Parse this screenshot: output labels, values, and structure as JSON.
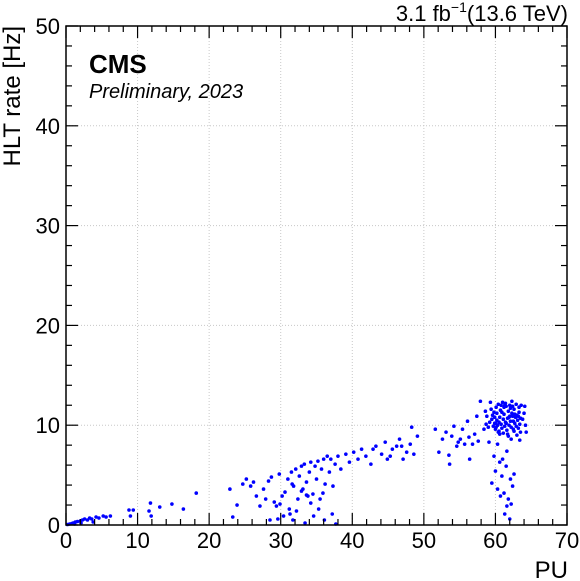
{
  "chart_data": {
    "type": "scatter",
    "title": "",
    "xlabel": "PU",
    "ylabel": "HLT rate [Hz]",
    "xlim": [
      0,
      70
    ],
    "ylim": [
      0,
      50
    ],
    "x_ticks": [
      "0",
      "10",
      "20",
      "30",
      "40",
      "50",
      "60",
      "70"
    ],
    "y_ticks": [
      "0",
      "10",
      "20",
      "30",
      "40",
      "50"
    ],
    "grid": true,
    "marker_color": "#0000ff",
    "lumi_value": "3.1 fb",
    "lumi_exponent": "−1",
    "lumi_energy": "(13.6 TeV)",
    "experiment": "CMS",
    "extra_text": "Preliminary, 2023",
    "points": [
      [
        0.2,
        0.05
      ],
      [
        0.5,
        0.1
      ],
      [
        0.8,
        0.15
      ],
      [
        1.0,
        0.2
      ],
      [
        1.3,
        0.3
      ],
      [
        1.6,
        0.35
      ],
      [
        2.0,
        0.4
      ],
      [
        2.3,
        0.5
      ],
      [
        2.6,
        0.6
      ],
      [
        3.0,
        0.5
      ],
      [
        3.3,
        0.7
      ],
      [
        3.6,
        0.6
      ],
      [
        4.2,
        0.8
      ],
      [
        4.6,
        0.7
      ],
      [
        5.2,
        0.9
      ],
      [
        5.6,
        0.8
      ],
      [
        6.2,
        0.9
      ],
      [
        1.2,
        0.1
      ],
      [
        2.1,
        0.2
      ],
      [
        3.8,
        0.3
      ],
      [
        8.8,
        1.5
      ],
      [
        9.4,
        1.5
      ],
      [
        9.0,
        0.9
      ],
      [
        11.6,
        1.4
      ],
      [
        11.8,
        2.2
      ],
      [
        11.9,
        0.9
      ],
      [
        13.1,
        1.8
      ],
      [
        14.8,
        2.1
      ],
      [
        16.4,
        1.6
      ],
      [
        18.2,
        3.2
      ],
      [
        22.9,
        3.6
      ],
      [
        23.3,
        0.8
      ],
      [
        23.9,
        2.0
      ],
      [
        24.7,
        4.1
      ],
      [
        25.2,
        4.6
      ],
      [
        25.8,
        3.9
      ],
      [
        26.2,
        4.3
      ],
      [
        26.6,
        2.9
      ],
      [
        27.1,
        1.9
      ],
      [
        27.6,
        3.6
      ],
      [
        27.9,
        2.6
      ],
      [
        28.3,
        4.4
      ],
      [
        28.7,
        4.8
      ],
      [
        29.1,
        2.3
      ],
      [
        29.4,
        1.9
      ],
      [
        29.8,
        5.1
      ],
      [
        30.2,
        2.9
      ],
      [
        30.6,
        3.3
      ],
      [
        31.0,
        4.6
      ],
      [
        31.2,
        1.6
      ],
      [
        31.5,
        5.3
      ],
      [
        31.8,
        3.9
      ],
      [
        32.1,
        5.6
      ],
      [
        32.4,
        2.6
      ],
      [
        32.6,
        4.9
      ],
      [
        32.9,
        5.9
      ],
      [
        33.1,
        3.6
      ],
      [
        33.3,
        6.1
      ],
      [
        33.6,
        4.3
      ],
      [
        33.8,
        2.9
      ],
      [
        34.0,
        5.3
      ],
      [
        34.2,
        6.3
      ],
      [
        34.5,
        3.1
      ],
      [
        34.8,
        5.9
      ],
      [
        35.0,
        4.6
      ],
      [
        35.2,
        6.4
      ],
      [
        35.5,
        2.6
      ],
      [
        35.7,
        5.6
      ],
      [
        36.0,
        6.6
      ],
      [
        36.2,
        4.1
      ],
      [
        36.5,
        6.9
      ],
      [
        36.8,
        5.3
      ],
      [
        37.0,
        6.6
      ],
      [
        37.3,
        3.9
      ],
      [
        37.6,
        6.1
      ],
      [
        38.0,
        6.9
      ],
      [
        38.4,
        5.6
      ],
      [
        39.1,
        7.1
      ],
      [
        39.6,
        6.3
      ],
      [
        40.2,
        7.3
      ],
      [
        40.8,
        6.6
      ],
      [
        41.3,
        7.6
      ],
      [
        29.6,
        0.6
      ],
      [
        30.4,
        0.9
      ],
      [
        31.3,
        1.1
      ],
      [
        31.7,
        0.5
      ],
      [
        32.2,
        1.4
      ],
      [
        33.4,
        0.2
      ],
      [
        34.6,
        0.9
      ],
      [
        35.3,
        1.6
      ],
      [
        36.1,
        0.5
      ],
      [
        37.2,
        1.1
      ],
      [
        37.7,
        0.1
      ],
      [
        28.5,
        0.5
      ],
      [
        33.6,
        3.0
      ],
      [
        34.2,
        2.2
      ],
      [
        29.9,
        2.1
      ],
      [
        31.6,
        4.1
      ],
      [
        32.9,
        3.4
      ],
      [
        35.9,
        3.2
      ],
      [
        42.6,
        6.1
      ],
      [
        43.3,
        7.9
      ],
      [
        44.1,
        7.1
      ],
      [
        44.6,
        8.3
      ],
      [
        45.3,
        6.9
      ],
      [
        45.6,
        7.6
      ],
      [
        46.2,
        7.9
      ],
      [
        46.6,
        8.6
      ],
      [
        47.1,
        6.6
      ],
      [
        47.6,
        7.3
      ],
      [
        48.1,
        8.1
      ],
      [
        48.3,
        9.8
      ],
      [
        48.6,
        7.1
      ],
      [
        49.1,
        8.9
      ],
      [
        42.9,
        7.6
      ],
      [
        44.9,
        6.6
      ],
      [
        46.9,
        7.9
      ],
      [
        41.9,
        6.9
      ],
      [
        51.6,
        9.6
      ],
      [
        52.1,
        7.3
      ],
      [
        52.6,
        8.6
      ],
      [
        53.1,
        9.3
      ],
      [
        53.6,
        6.1
      ],
      [
        53.9,
        8.9
      ],
      [
        54.2,
        9.9
      ],
      [
        54.6,
        7.9
      ],
      [
        55.1,
        8.6
      ],
      [
        55.4,
        9.6
      ],
      [
        55.7,
        8.1
      ],
      [
        56.1,
        10.4
      ],
      [
        56.4,
        6.6
      ],
      [
        56.8,
        8.1
      ],
      [
        57.1,
        9.1
      ],
      [
        57.4,
        10.9
      ],
      [
        57.6,
        8.4
      ],
      [
        53.5,
        7.0
      ],
      [
        54.8,
        8.3
      ],
      [
        56.3,
        8.8
      ],
      [
        59.5,
        10.6
      ],
      [
        59.7,
        9.9
      ],
      [
        59.8,
        11.3
      ],
      [
        59.9,
        10.2
      ],
      [
        60.0,
        9.6
      ],
      [
        60.1,
        11.8
      ],
      [
        60.2,
        10.5
      ],
      [
        60.3,
        10.0
      ],
      [
        60.4,
        12.1
      ],
      [
        60.5,
        9.4
      ],
      [
        60.6,
        10.8
      ],
      [
        60.7,
        11.5
      ],
      [
        60.8,
        10.1
      ],
      [
        60.9,
        9.7
      ],
      [
        61.0,
        12.3
      ],
      [
        61.1,
        10.6
      ],
      [
        61.2,
        11.1
      ],
      [
        61.3,
        9.9
      ],
      [
        61.4,
        10.3
      ],
      [
        61.5,
        11.9
      ],
      [
        61.6,
        9.5
      ],
      [
        61.7,
        10.7
      ],
      [
        61.8,
        11.4
      ],
      [
        61.9,
        10.0
      ],
      [
        62.0,
        12.0
      ],
      [
        62.1,
        10.4
      ],
      [
        62.2,
        9.8
      ],
      [
        62.3,
        11.2
      ],
      [
        62.4,
        10.9
      ],
      [
        62.5,
        9.6
      ],
      [
        62.6,
        11.6
      ],
      [
        62.7,
        10.2
      ],
      [
        62.8,
        10.8
      ],
      [
        62.9,
        9.9
      ],
      [
        63.0,
        11.0
      ],
      [
        63.1,
        10.5
      ],
      [
        63.2,
        9.7
      ],
      [
        63.3,
        11.3
      ],
      [
        63.4,
        10.1
      ],
      [
        63.5,
        10.7
      ],
      [
        59.6,
        11.0
      ],
      [
        59.9,
        10.8
      ],
      [
        60.2,
        11.2
      ],
      [
        60.5,
        10.3
      ],
      [
        60.8,
        12.0
      ],
      [
        61.1,
        9.2
      ],
      [
        61.4,
        12.2
      ],
      [
        61.7,
        9.1
      ],
      [
        62.0,
        10.9
      ],
      [
        62.3,
        12.4
      ],
      [
        62.6,
        9.4
      ],
      [
        62.9,
        12.1
      ],
      [
        63.2,
        10.9
      ],
      [
        63.5,
        9.3
      ],
      [
        60.0,
        10.2
      ],
      [
        60.6,
        9.1
      ],
      [
        61.2,
        11.8
      ],
      [
        61.8,
        8.9
      ],
      [
        62.4,
        11.9
      ],
      [
        63.0,
        9.0
      ],
      [
        59.2,
        10.3
      ],
      [
        59.4,
        11.6
      ],
      [
        59.0,
        9.8
      ],
      [
        63.8,
        10.6
      ],
      [
        64.0,
        11.2
      ],
      [
        64.2,
        10.0
      ],
      [
        58.8,
        10.9
      ],
      [
        58.6,
        11.4
      ],
      [
        63.6,
        12.0
      ],
      [
        59.3,
        12.3
      ],
      [
        60.4,
        9.3
      ],
      [
        61.5,
        10.2
      ],
      [
        62.1,
        11.7
      ],
      [
        60.9,
        11.3
      ],
      [
        61.9,
        10.8
      ],
      [
        62.7,
        11.1
      ],
      [
        60.1,
        9.8
      ],
      [
        61.3,
        12.0
      ],
      [
        62.5,
        10.4
      ],
      [
        63.3,
        11.8
      ],
      [
        57.9,
        12.4
      ],
      [
        58.4,
        9.6
      ],
      [
        64.3,
        9.3
      ],
      [
        60.3,
        8.1
      ],
      [
        61.6,
        7.4
      ],
      [
        62.2,
        8.6
      ],
      [
        59.1,
        8.3
      ],
      [
        63.4,
        8.5
      ],
      [
        58.7,
        10.1
      ],
      [
        64.1,
        11.9
      ],
      [
        59.5,
        4.2
      ],
      [
        60.0,
        5.4
      ],
      [
        60.3,
        3.6
      ],
      [
        60.6,
        6.3
      ],
      [
        60.9,
        4.9
      ],
      [
        61.2,
        3.2
      ],
      [
        61.5,
        5.9
      ],
      [
        61.8,
        2.6
      ],
      [
        62.1,
        4.6
      ],
      [
        62.4,
        3.9
      ],
      [
        61.3,
        1.1
      ],
      [
        61.6,
        1.9
      ],
      [
        62.0,
        0.6
      ],
      [
        62.2,
        2.1
      ],
      [
        59.8,
        6.9
      ],
      [
        62.6,
        5.1
      ],
      [
        60.7,
        2.9
      ],
      [
        61.0,
        6.6
      ]
    ]
  }
}
